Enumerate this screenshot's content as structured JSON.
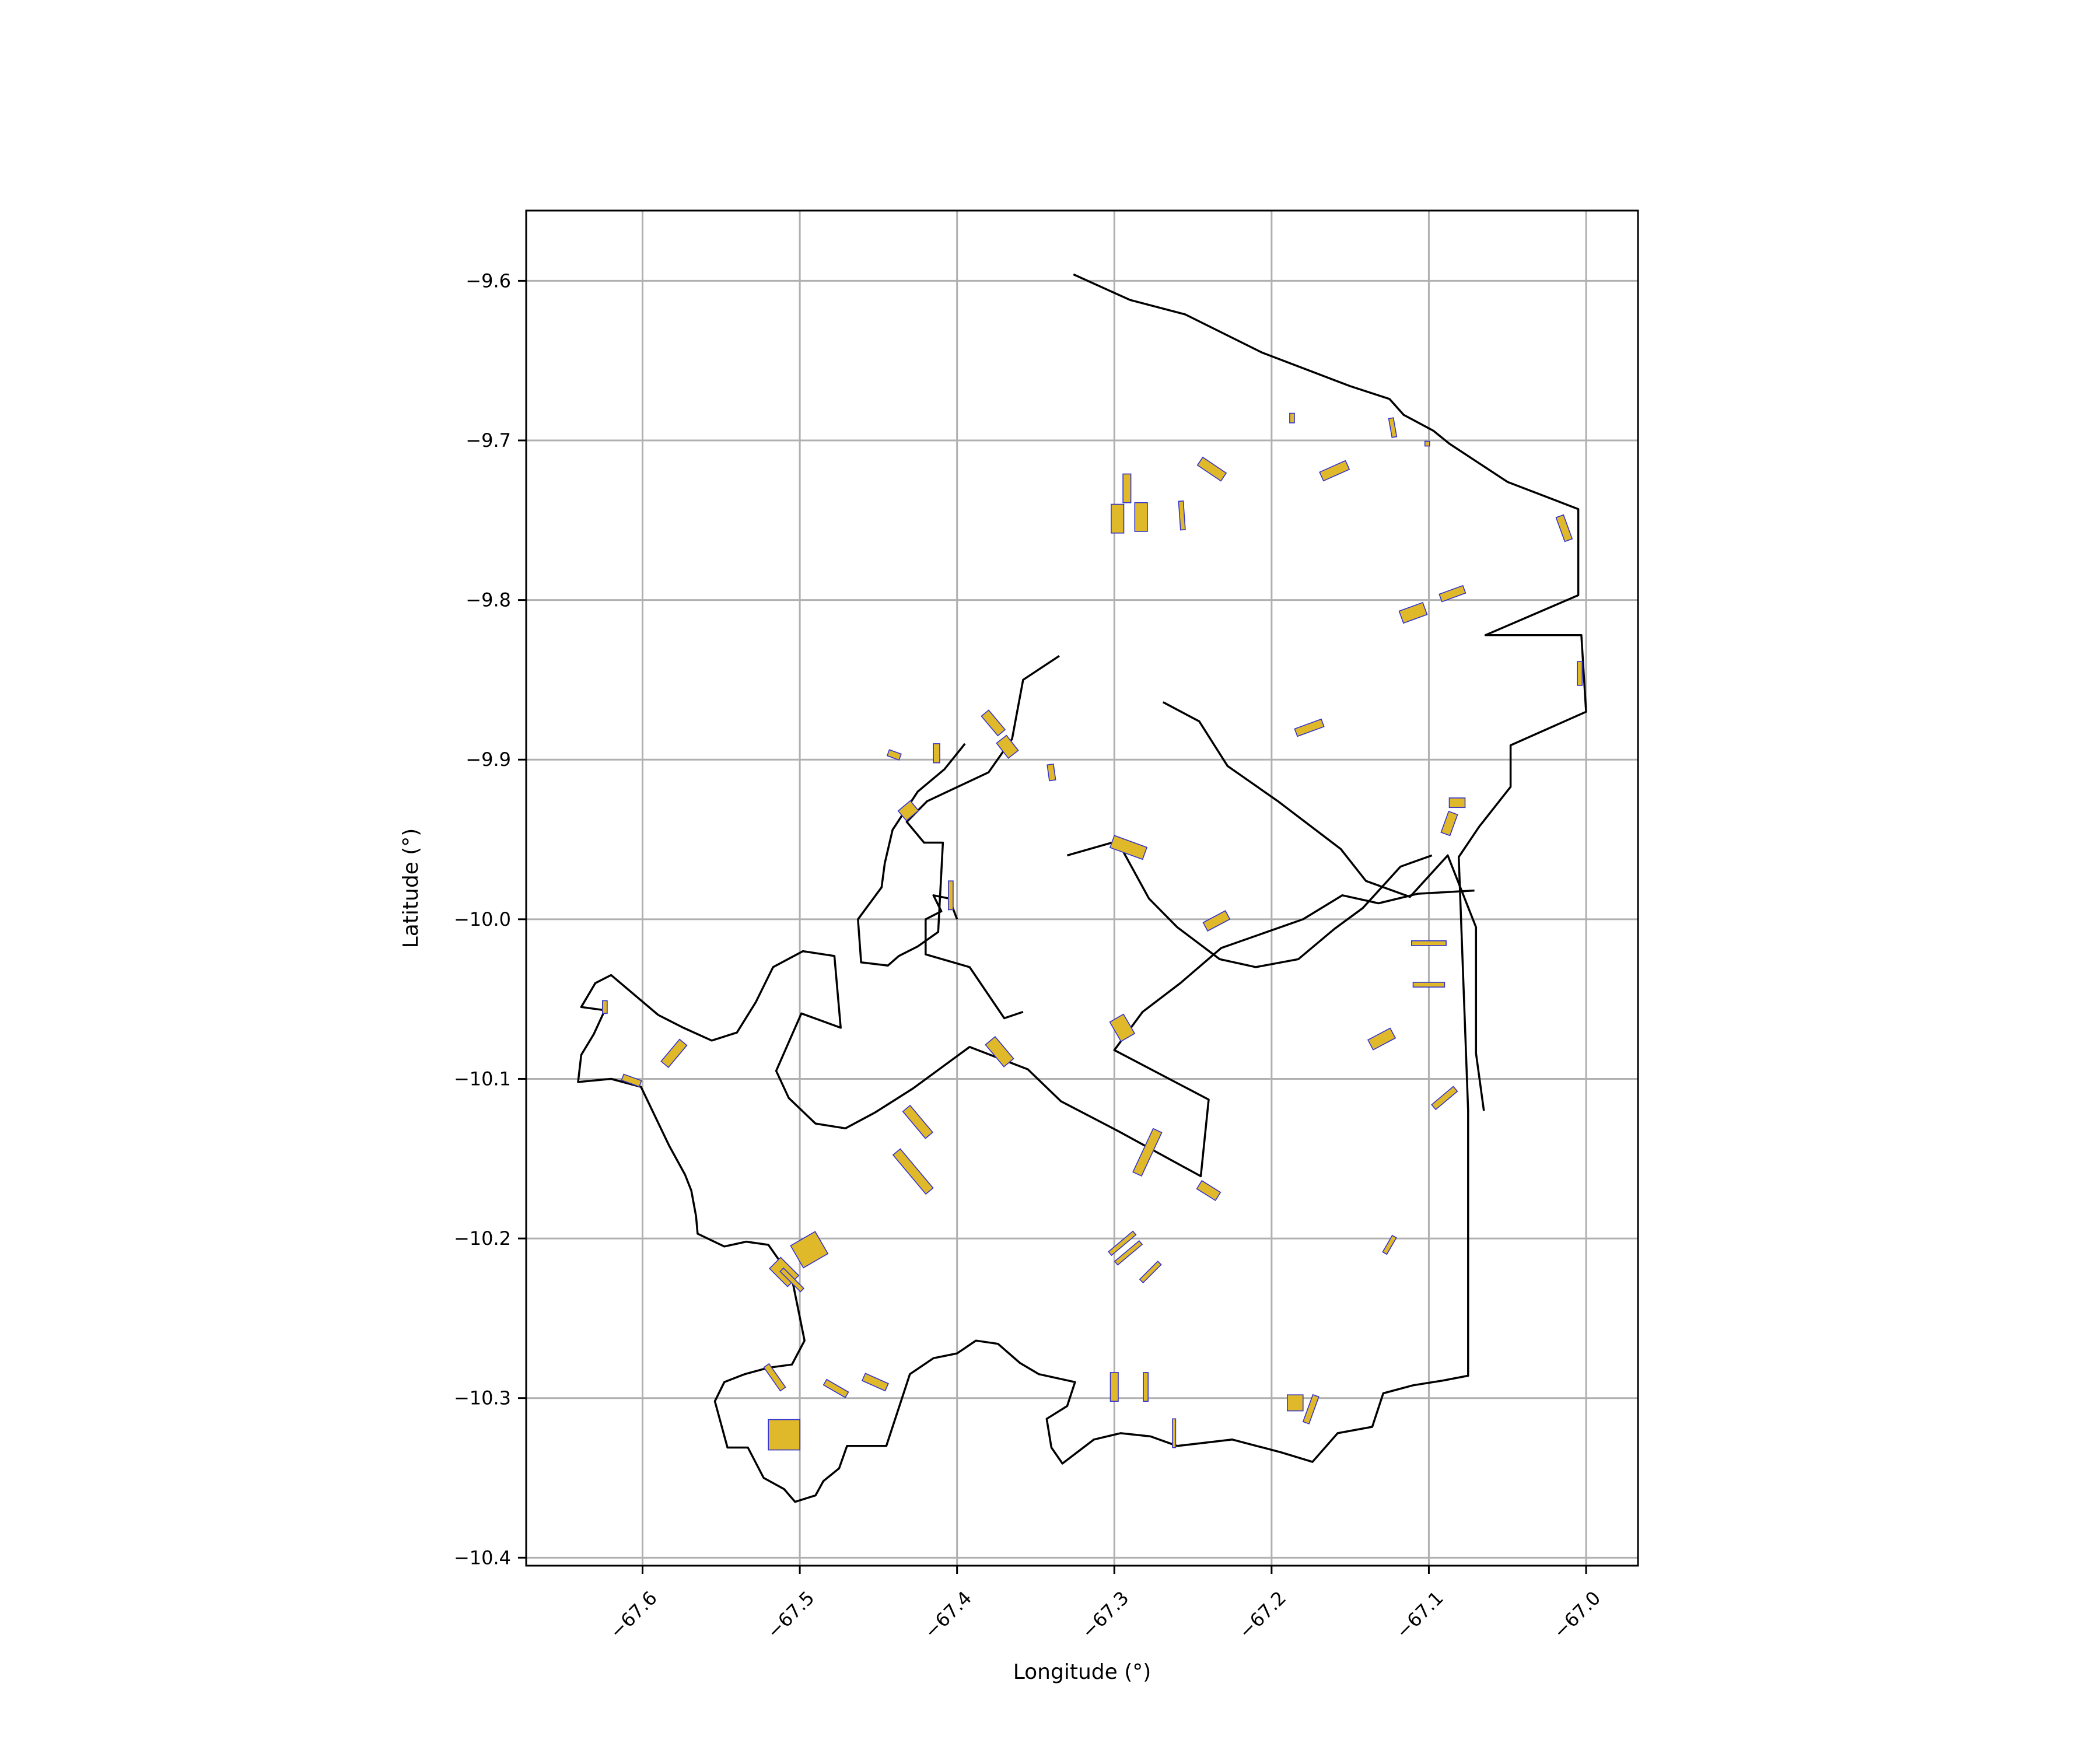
{
  "chart_data": {
    "type": "map",
    "title": "",
    "xlabel": "Longitude (°)",
    "ylabel": "Latitude (°)",
    "xlim": [
      -67.674,
      -66.967
    ],
    "ylim": [
      -10.405,
      -9.556
    ],
    "grid": true,
    "x_ticks": [
      {
        "value": -67.6,
        "label": "−67.6"
      },
      {
        "value": -67.5,
        "label": "−67.5"
      },
      {
        "value": -67.4,
        "label": "−67.4"
      },
      {
        "value": -67.3,
        "label": "−67.3"
      },
      {
        "value": -67.2,
        "label": "−67.2"
      },
      {
        "value": -67.1,
        "label": "−67.1"
      },
      {
        "value": -67.0,
        "label": "−67.0"
      }
    ],
    "y_ticks": [
      {
        "value": -9.6,
        "label": "−9.6"
      },
      {
        "value": -9.7,
        "label": "−9.7"
      },
      {
        "value": -9.8,
        "label": "−9.8"
      },
      {
        "value": -9.9,
        "label": "−9.9"
      },
      {
        "value": -10.0,
        "label": "−10.0"
      },
      {
        "value": -10.1,
        "label": "−10.1"
      },
      {
        "value": -10.2,
        "label": "−10.2"
      },
      {
        "value": -10.3,
        "label": "−10.3"
      },
      {
        "value": -10.4,
        "label": "−10.4"
      }
    ],
    "colors": {
      "boundary": "#000000",
      "patch_fill": "#e0b92b",
      "patch_edge": "#3333cc",
      "grid": "#b0b0b0"
    },
    "boundaries": [
      {
        "name": "outer-boundary",
        "coords": [
          [
            -67.326,
            -9.596
          ],
          [
            -67.29,
            -9.612
          ],
          [
            -67.255,
            -9.621
          ],
          [
            -67.206,
            -9.645
          ],
          [
            -67.15,
            -9.666
          ],
          [
            -67.125,
            -9.674
          ],
          [
            -67.116,
            -9.684
          ],
          [
            -67.097,
            -9.694
          ],
          [
            -67.087,
            -9.702
          ],
          [
            -67.05,
            -9.726
          ],
          [
            -67.005,
            -9.743
          ],
          [
            -67.005,
            -9.797
          ],
          [
            -67.064,
            -9.822
          ],
          [
            -67.003,
            -9.822
          ],
          [
            -67.0,
            -9.87
          ],
          [
            -67.048,
            -9.891
          ],
          [
            -67.048,
            -9.917
          ],
          [
            -67.068,
            -9.942
          ],
          [
            -67.081,
            -9.961
          ],
          [
            -67.075,
            -10.12
          ],
          [
            -67.075,
            -10.286
          ],
          [
            -67.091,
            -10.289
          ],
          [
            -67.11,
            -10.292
          ],
          [
            -67.129,
            -10.297
          ],
          [
            -67.136,
            -10.318
          ],
          [
            -67.158,
            -10.322
          ],
          [
            -67.174,
            -10.34
          ],
          [
            -67.194,
            -10.334
          ],
          [
            -67.225,
            -10.326
          ],
          [
            -67.26,
            -10.33
          ],
          [
            -67.277,
            -10.324
          ],
          [
            -67.296,
            -10.322
          ],
          [
            -67.313,
            -10.326
          ],
          [
            -67.333,
            -10.341
          ],
          [
            -67.34,
            -10.331
          ],
          [
            -67.343,
            -10.313
          ],
          [
            -67.33,
            -10.305
          ],
          [
            -67.325,
            -10.29
          ],
          [
            -67.348,
            -10.285
          ],
          [
            -67.36,
            -10.278
          ],
          [
            -67.374,
            -10.266
          ],
          [
            -67.388,
            -10.264
          ],
          [
            -67.4,
            -10.272
          ],
          [
            -67.415,
            -10.275
          ],
          [
            -67.43,
            -10.285
          ],
          [
            -67.445,
            -10.33
          ],
          [
            -67.47,
            -10.33
          ],
          [
            -67.475,
            -10.344
          ],
          [
            -67.485,
            -10.352
          ],
          [
            -67.49,
            -10.361
          ],
          [
            -67.503,
            -10.365
          ],
          [
            -67.51,
            -10.357
          ],
          [
            -67.523,
            -10.35
          ],
          [
            -67.533,
            -10.331
          ],
          [
            -67.546,
            -10.331
          ],
          [
            -67.554,
            -10.302
          ],
          [
            -67.548,
            -10.29
          ],
          [
            -67.535,
            -10.285
          ],
          [
            -67.52,
            -10.281
          ],
          [
            -67.505,
            -10.279
          ],
          [
            -67.497,
            -10.264
          ],
          [
            -67.505,
            -10.225
          ],
          [
            -67.52,
            -10.204
          ],
          [
            -67.534,
            -10.202
          ],
          [
            -67.548,
            -10.205
          ],
          [
            -67.565,
            -10.197
          ],
          [
            -67.566,
            -10.186
          ],
          [
            -67.569,
            -10.17
          ],
          [
            -67.573,
            -10.16
          ],
          [
            -67.583,
            -10.142
          ],
          [
            -67.601,
            -10.105
          ],
          [
            -67.62,
            -10.1
          ],
          [
            -67.641,
            -10.102
          ],
          [
            -67.639,
            -10.085
          ],
          [
            -67.631,
            -10.072
          ],
          [
            -67.624,
            -10.057
          ],
          [
            -67.639,
            -10.055
          ],
          [
            -67.63,
            -10.04
          ],
          [
            -67.62,
            -10.035
          ],
          [
            -67.59,
            -10.06
          ],
          [
            -67.574,
            -10.068
          ],
          [
            -67.556,
            -10.076
          ],
          [
            -67.54,
            -10.071
          ],
          [
            -67.528,
            -10.052
          ],
          [
            -67.517,
            -10.03
          ],
          [
            -67.498,
            -10.02
          ],
          [
            -67.478,
            -10.023
          ],
          [
            -67.474,
            -10.068
          ],
          [
            -67.499,
            -10.059
          ],
          [
            -67.515,
            -10.095
          ],
          [
            -67.507,
            -10.112
          ],
          [
            -67.49,
            -10.128
          ],
          [
            -67.471,
            -10.131
          ],
          [
            -67.452,
            -10.121
          ],
          [
            -67.428,
            -10.106
          ],
          [
            -67.392,
            -10.08
          ],
          [
            -67.355,
            -10.094
          ],
          [
            -67.334,
            -10.114
          ],
          [
            -67.297,
            -10.133
          ],
          [
            -67.245,
            -10.161
          ],
          [
            -67.24,
            -10.113
          ],
          [
            -67.3,
            -10.082
          ],
          [
            -67.282,
            -10.058
          ],
          [
            -67.258,
            -10.04
          ],
          [
            -67.232,
            -10.018
          ],
          [
            -67.18,
            -10.0
          ],
          [
            -67.155,
            -9.985
          ],
          [
            -67.132,
            -9.99
          ],
          [
            -67.107,
            -9.984
          ],
          [
            -67.071,
            -9.982
          ]
        ]
      },
      {
        "name": "inner-boundary-north",
        "coords": [
          [
            -67.335,
            -9.835
          ],
          [
            -67.358,
            -9.85
          ],
          [
            -67.365,
            -9.887
          ],
          [
            -67.38,
            -9.908
          ],
          [
            -67.419,
            -9.926
          ],
          [
            -67.432,
            -9.939
          ],
          [
            -67.421,
            -9.952
          ],
          [
            -67.409,
            -9.952
          ],
          [
            -67.412,
            -10.008
          ],
          [
            -67.425,
            -10.017
          ],
          [
            -67.437,
            -10.023
          ],
          [
            -67.444,
            -10.029
          ],
          [
            -67.461,
            -10.027
          ],
          [
            -67.463,
            -10.0
          ],
          [
            -67.448,
            -9.98
          ],
          [
            -67.446,
            -9.965
          ],
          [
            -67.441,
            -9.944
          ],
          [
            -67.425,
            -9.92
          ],
          [
            -67.408,
            -9.906
          ],
          [
            -67.395,
            -9.89
          ]
        ]
      },
      {
        "name": "inner-boundary-east",
        "coords": [
          [
            -67.269,
            -9.864
          ],
          [
            -67.246,
            -9.876
          ],
          [
            -67.228,
            -9.904
          ],
          [
            -67.196,
            -9.926
          ],
          [
            -67.156,
            -9.956
          ],
          [
            -67.14,
            -9.976
          ],
          [
            -67.112,
            -9.986
          ],
          [
            -67.088,
            -9.96
          ],
          [
            -67.07,
            -10.005
          ],
          [
            -67.07,
            -10.084
          ],
          [
            -67.065,
            -10.12
          ]
        ]
      },
      {
        "name": "inner-boundary-central",
        "coords": [
          [
            -67.33,
            -9.96
          ],
          [
            -67.298,
            -9.951
          ],
          [
            -67.278,
            -9.987
          ],
          [
            -67.26,
            -10.005
          ],
          [
            -67.233,
            -10.025
          ],
          [
            -67.21,
            -10.03
          ],
          [
            -67.183,
            -10.025
          ],
          [
            -67.16,
            -10.006
          ],
          [
            -67.142,
            -9.993
          ],
          [
            -67.118,
            -9.967
          ],
          [
            -67.098,
            -9.96
          ]
        ]
      },
      {
        "name": "inner-boundary-south-west",
        "coords": [
          [
            -67.358,
            -10.058
          ],
          [
            -67.37,
            -10.062
          ],
          [
            -67.392,
            -10.03
          ],
          [
            -67.42,
            -10.022
          ],
          [
            -67.42,
            -10.0
          ],
          [
            -67.41,
            -9.995
          ],
          [
            -67.415,
            -9.985
          ],
          [
            -67.405,
            -9.987
          ],
          [
            -67.4,
            -10.0
          ]
        ]
      }
    ],
    "patches": [
      {
        "lon": -67.238,
        "lat": -9.718,
        "w": 0.018,
        "h": 0.006,
        "angle": 34
      },
      {
        "lon": -67.16,
        "lat": -9.719,
        "w": 0.018,
        "h": 0.006,
        "angle": -24
      },
      {
        "lon": -67.187,
        "lat": -9.686,
        "w": 0.003,
        "h": 0.006,
        "angle": 0
      },
      {
        "lon": -67.123,
        "lat": -9.692,
        "w": 0.003,
        "h": 0.012,
        "angle": -10
      },
      {
        "lon": -67.101,
        "lat": -9.702,
        "w": 0.003,
        "h": 0.003,
        "angle": 0
      },
      {
        "lon": -67.292,
        "lat": -9.73,
        "w": 0.005,
        "h": 0.018,
        "angle": 0
      },
      {
        "lon": -67.298,
        "lat": -9.749,
        "w": 0.008,
        "h": 0.018,
        "angle": 0
      },
      {
        "lon": -67.283,
        "lat": -9.748,
        "w": 0.008,
        "h": 0.018,
        "angle": 0
      },
      {
        "lon": -67.257,
        "lat": -9.747,
        "w": 0.003,
        "h": 0.018,
        "angle": -4
      },
      {
        "lon": -67.014,
        "lat": -9.755,
        "w": 0.005,
        "h": 0.016,
        "angle": -20
      },
      {
        "lon": -67.11,
        "lat": -9.808,
        "w": 0.016,
        "h": 0.008,
        "angle": -20
      },
      {
        "lon": -67.085,
        "lat": -9.796,
        "w": 0.016,
        "h": 0.005,
        "angle": -20
      },
      {
        "lon": -67.004,
        "lat": -9.846,
        "w": 0.003,
        "h": 0.015,
        "angle": 0
      },
      {
        "lon": -67.176,
        "lat": -9.88,
        "w": 0.018,
        "h": 0.005,
        "angle": -20
      },
      {
        "lon": -67.377,
        "lat": -9.877,
        "w": 0.006,
        "h": 0.016,
        "angle": -40
      },
      {
        "lon": -67.368,
        "lat": -9.892,
        "w": 0.008,
        "h": 0.012,
        "angle": -38
      },
      {
        "lon": -67.413,
        "lat": -9.896,
        "w": 0.004,
        "h": 0.012,
        "angle": 0
      },
      {
        "lon": -67.44,
        "lat": -9.897,
        "w": 0.008,
        "h": 0.004,
        "angle": 20
      },
      {
        "lon": -67.34,
        "lat": -9.908,
        "w": 0.004,
        "h": 0.01,
        "angle": -8
      },
      {
        "lon": -67.431,
        "lat": -9.932,
        "w": 0.01,
        "h": 0.008,
        "angle": -40
      },
      {
        "lon": -67.291,
        "lat": -9.955,
        "w": 0.022,
        "h": 0.008,
        "angle": 20
      },
      {
        "lon": -67.087,
        "lat": -9.94,
        "w": 0.006,
        "h": 0.014,
        "angle": 20
      },
      {
        "lon": -67.082,
        "lat": -9.927,
        "w": 0.01,
        "h": 0.006,
        "angle": 0
      },
      {
        "lon": -67.404,
        "lat": -9.985,
        "w": 0.003,
        "h": 0.018,
        "angle": 0
      },
      {
        "lon": -67.235,
        "lat": -10.001,
        "w": 0.016,
        "h": 0.006,
        "angle": -28
      },
      {
        "lon": -67.1,
        "lat": -10.015,
        "w": 0.022,
        "h": 0.003,
        "angle": 0
      },
      {
        "lon": -67.1,
        "lat": -10.041,
        "w": 0.02,
        "h": 0.003,
        "angle": 0
      },
      {
        "lon": -67.13,
        "lat": -10.075,
        "w": 0.016,
        "h": 0.007,
        "angle": -28
      },
      {
        "lon": -67.295,
        "lat": -10.068,
        "w": 0.01,
        "h": 0.014,
        "angle": -30
      },
      {
        "lon": -67.58,
        "lat": -10.084,
        "w": 0.006,
        "h": 0.018,
        "angle": 40
      },
      {
        "lon": -67.373,
        "lat": -10.083,
        "w": 0.008,
        "h": 0.018,
        "angle": -40
      },
      {
        "lon": -67.624,
        "lat": -10.055,
        "w": 0.003,
        "h": 0.008,
        "angle": 0
      },
      {
        "lon": -67.607,
        "lat": -10.101,
        "w": 0.012,
        "h": 0.004,
        "angle": 20
      },
      {
        "lon": -67.09,
        "lat": -10.112,
        "w": 0.018,
        "h": 0.004,
        "angle": -40
      },
      {
        "lon": -67.425,
        "lat": -10.127,
        "w": 0.006,
        "h": 0.022,
        "angle": -40
      },
      {
        "lon": -67.279,
        "lat": -10.146,
        "w": 0.006,
        "h": 0.03,
        "angle": 25
      },
      {
        "lon": -67.428,
        "lat": -10.158,
        "w": 0.006,
        "h": 0.032,
        "angle": -40
      },
      {
        "lon": -67.24,
        "lat": -10.17,
        "w": 0.014,
        "h": 0.006,
        "angle": 32
      },
      {
        "lon": -67.494,
        "lat": -10.207,
        "w": 0.018,
        "h": 0.016,
        "angle": -30
      },
      {
        "lon": -67.295,
        "lat": -10.203,
        "w": 0.003,
        "h": 0.02,
        "angle": 50
      },
      {
        "lon": -67.291,
        "lat": -10.209,
        "w": 0.003,
        "h": 0.02,
        "angle": 50
      },
      {
        "lon": -67.125,
        "lat": -10.204,
        "w": 0.003,
        "h": 0.012,
        "angle": 30
      },
      {
        "lon": -67.51,
        "lat": -10.221,
        "w": 0.01,
        "h": 0.016,
        "angle": -45
      },
      {
        "lon": -67.505,
        "lat": -10.226,
        "w": 0.003,
        "h": 0.018,
        "angle": -45
      },
      {
        "lon": -67.277,
        "lat": -10.221,
        "w": 0.003,
        "h": 0.016,
        "angle": 45
      },
      {
        "lon": -67.516,
        "lat": -10.287,
        "w": 0.004,
        "h": 0.018,
        "angle": -35
      },
      {
        "lon": -67.477,
        "lat": -10.294,
        "w": 0.016,
        "h": 0.004,
        "angle": 30
      },
      {
        "lon": -67.452,
        "lat": -10.29,
        "w": 0.016,
        "h": 0.005,
        "angle": 24
      },
      {
        "lon": -67.3,
        "lat": -10.293,
        "w": 0.005,
        "h": 0.018,
        "angle": 0
      },
      {
        "lon": -67.28,
        "lat": -10.293,
        "w": 0.003,
        "h": 0.018,
        "angle": 0
      },
      {
        "lon": -67.185,
        "lat": -10.303,
        "w": 0.01,
        "h": 0.01,
        "angle": 0
      },
      {
        "lon": -67.175,
        "lat": -10.307,
        "w": 0.004,
        "h": 0.018,
        "angle": 20
      },
      {
        "lon": -67.262,
        "lat": -10.322,
        "w": 0.002,
        "h": 0.018,
        "angle": 0
      },
      {
        "lon": -67.51,
        "lat": -10.323,
        "w": 0.02,
        "h": 0.019,
        "angle": 0
      }
    ]
  }
}
